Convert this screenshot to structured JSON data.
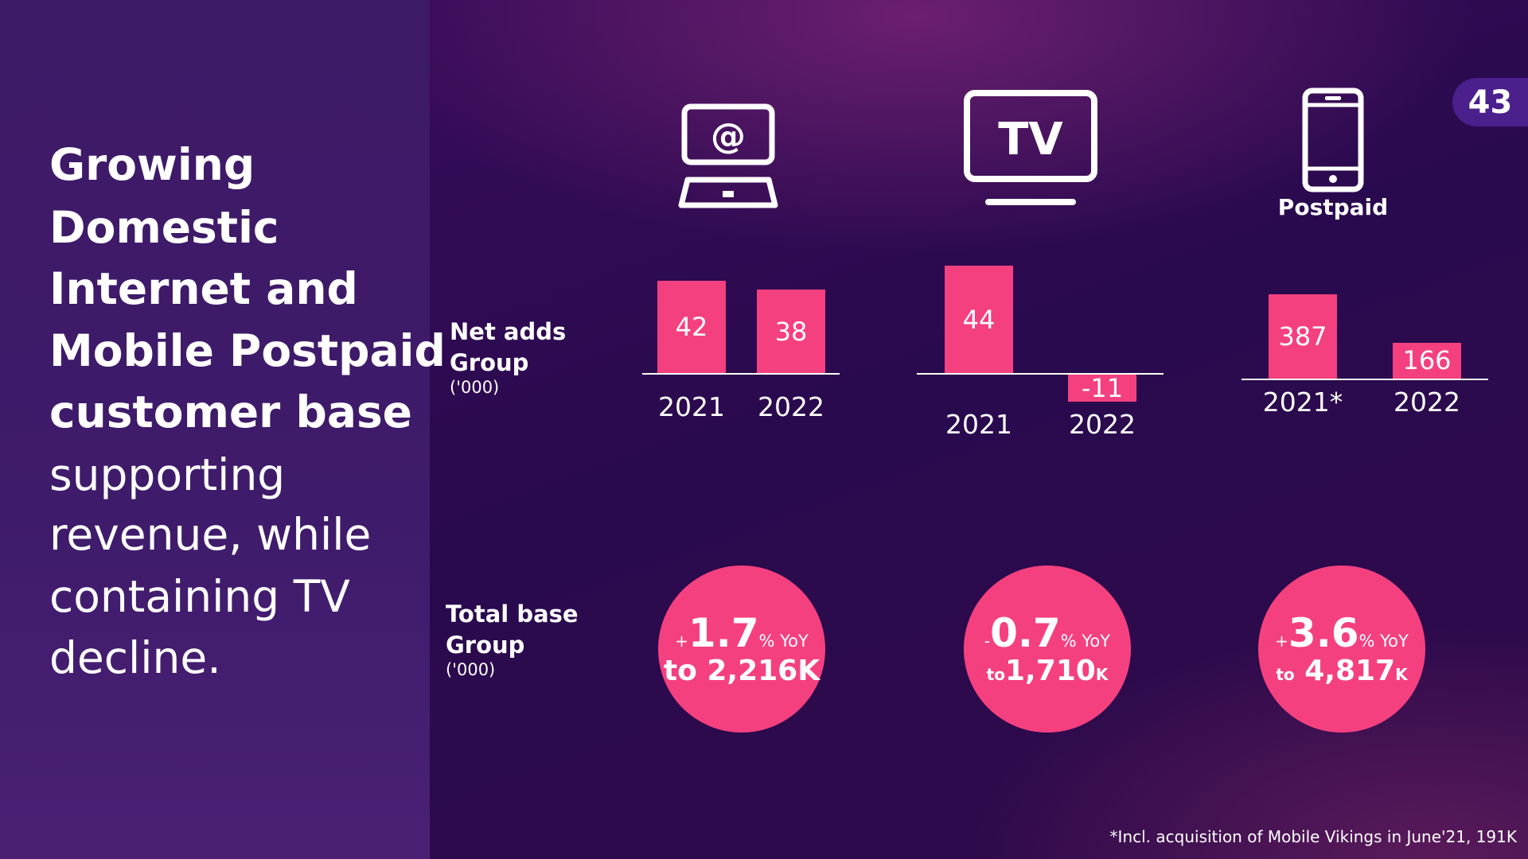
{
  "page_number": "43",
  "title_bold": [
    "Growing",
    "Domestic",
    "Internet and",
    "Mobile Postpaid",
    "customer base"
  ],
  "title_light": [
    "supporting",
    "revenue, while",
    "containing TV",
    "decline."
  ],
  "net_adds": {
    "label": "Net adds",
    "label2": "Group",
    "unit": "('000)"
  },
  "total_base": {
    "label": "Total base",
    "label2": "Group",
    "unit": "('000)"
  },
  "icons": {
    "internet": "laptop-at-icon",
    "tv": "tv-icon",
    "mobile": "phone-icon",
    "tv_text": "TV",
    "at_text": "@",
    "mobile_label": "Postpaid"
  },
  "colors": {
    "accent": "#f5407f",
    "panel": "#3d1a66"
  },
  "chart_data": [
    {
      "type": "bar",
      "segment": "Internet",
      "categories": [
        "2021",
        "2022"
      ],
      "values": [
        42,
        38
      ]
    },
    {
      "type": "bar",
      "segment": "TV",
      "categories": [
        "2021",
        "2022"
      ],
      "values": [
        44,
        -11
      ]
    },
    {
      "type": "bar",
      "segment": "Postpaid",
      "categories": [
        "2021*",
        "2022"
      ],
      "values": [
        387,
        166
      ]
    }
  ],
  "totals": [
    {
      "sign": "+",
      "pct": "1.7",
      "yoy": "% YoY",
      "to": "to",
      "value": "2,216K",
      "unit": ""
    },
    {
      "sign": "-",
      "pct": "0.7",
      "yoy": "% YoY",
      "to": "to",
      "value": "1,710",
      "unit": "K"
    },
    {
      "sign": "+",
      "pct": "3.6",
      "yoy": "% YoY",
      "to": "to",
      "value": "4,817",
      "unit": "K"
    }
  ],
  "footnote": "*Incl. acquisition of Mobile Vikings in June'21, 191K"
}
